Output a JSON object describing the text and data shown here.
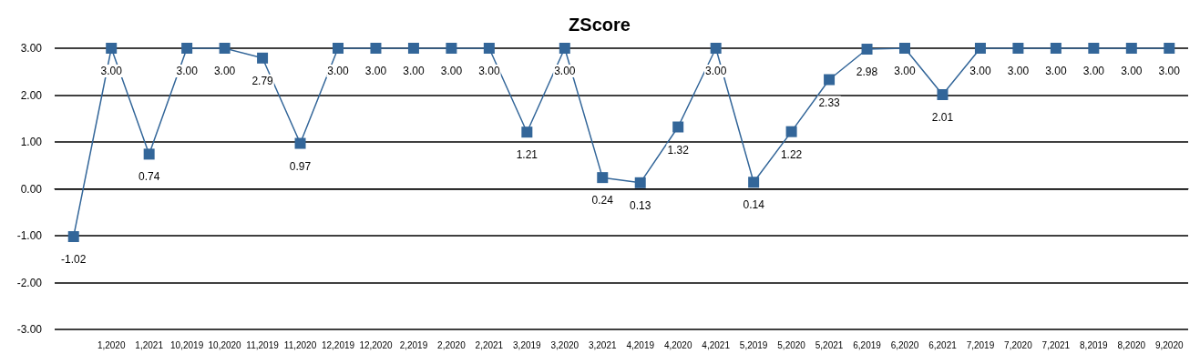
{
  "chart_data": {
    "type": "line",
    "title": "ZScore",
    "categories": [
      null,
      "1,2020",
      "1,2021",
      "10,2019",
      "10,2020",
      "11,2019",
      "11,2020",
      "12,2019",
      "12,2020",
      "2,2019",
      "2,2020",
      "2,2021",
      "3,2019",
      "3,2020",
      "3,2021",
      "4,2019",
      "4,2020",
      "4,2021",
      "5,2019",
      "5,2020",
      "5,2021",
      "6,2019",
      "6,2020",
      "6,2021",
      "7,2019",
      "7,2020",
      "7,2021",
      "8,2019",
      "8,2020",
      "9,2020"
    ],
    "series": [
      {
        "color": "#336699",
        "values": [
          -1.02,
          3.0,
          0.74,
          3.0,
          3.0,
          2.79,
          0.97,
          3.0,
          3.0,
          3.0,
          3.0,
          3.0,
          1.21,
          3.0,
          0.24,
          0.13,
          1.32,
          3.0,
          0.14,
          1.22,
          2.33,
          2.98,
          3.0,
          2.01,
          3.0,
          3.0,
          3.0,
          3.0,
          3.0,
          3.0
        ],
        "value_labels": [
          "-1.02",
          "3.00",
          "0.74",
          "3.00",
          "3.00",
          "2.79",
          "0.97",
          "3.00",
          "3.00",
          "3.00",
          "3.00",
          "3.00",
          "1.21",
          "3.00",
          "0.24",
          "0.13",
          "1.32",
          "3.00",
          "0.14",
          "1.22",
          "2.33",
          "2.98",
          "3.00",
          "2.01",
          "3.00",
          "3.00",
          "3.00",
          "3.00",
          "3.00",
          "3.00"
        ]
      }
    ],
    "ylim": [
      -3,
      3
    ],
    "yticks": [
      {
        "value": -3,
        "label": "-3.00"
      },
      {
        "value": -2,
        "label": "-2.00"
      },
      {
        "value": -1,
        "label": "-1.00"
      },
      {
        "value": 0,
        "label": "0.00"
      },
      {
        "value": 1,
        "label": "1.00"
      },
      {
        "value": 2,
        "label": "2.00"
      },
      {
        "value": 3,
        "label": "3.00"
      }
    ],
    "grid": "y",
    "marker": "square",
    "line_style": "solid"
  }
}
